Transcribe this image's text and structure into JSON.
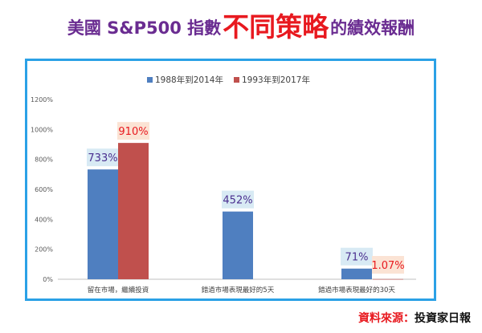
{
  "title": {
    "prefix": "美國 S&P500 指數",
    "highlight": "不同策略",
    "suffix": "的績效報酬"
  },
  "source": {
    "label": "資料來源：",
    "value": "投資家日報"
  },
  "colors": {
    "title": "#6a2c91",
    "highlight": "#e8191f",
    "frame": "#2ba1e6",
    "series1": "#4f7fc0",
    "series2": "#c0504d"
  },
  "chart_data": {
    "type": "bar",
    "categories": [
      "留在市場，繼續投資",
      "錯過市場表現最好的5天",
      "錯過市場表現最好的30天"
    ],
    "series": [
      {
        "name": "1988年到2014年",
        "values": [
          733,
          452,
          71
        ],
        "labels": [
          "733%",
          "452%",
          "71%"
        ],
        "color": "#4f7fc0"
      },
      {
        "name": "1993年到2017年",
        "values": [
          910,
          null,
          1.07
        ],
        "labels": [
          "910%",
          "",
          "1.07%"
        ],
        "color": "#c0504d"
      }
    ],
    "yticks": [
      "0%",
      "200%",
      "400%",
      "600%",
      "800%",
      "1000%",
      "1200%"
    ],
    "ylim": [
      0,
      1200
    ],
    "legend_position": "top-center",
    "grid": false
  }
}
